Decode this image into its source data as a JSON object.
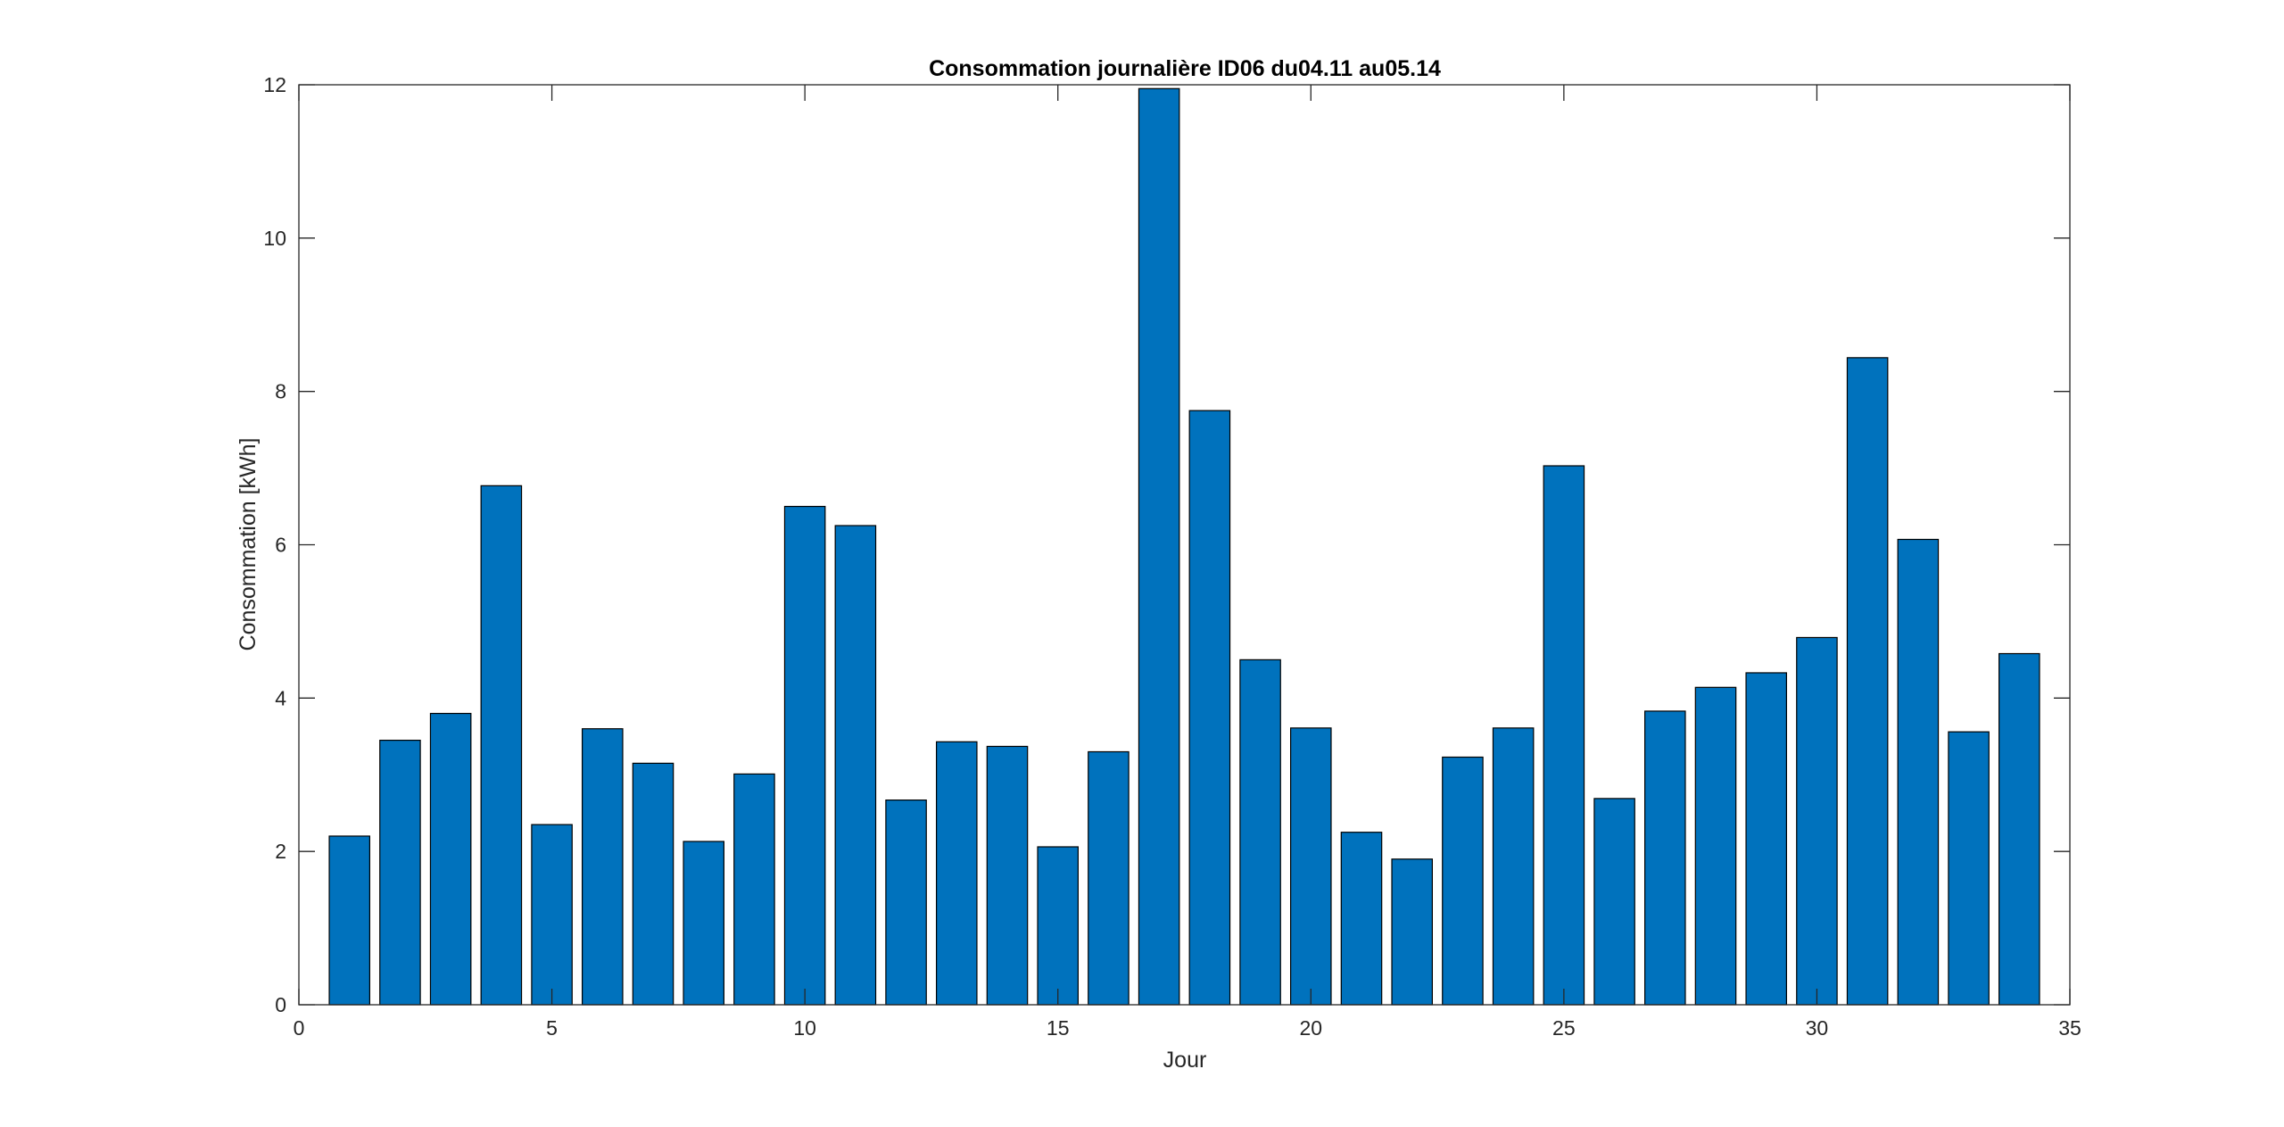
{
  "chart_data": {
    "type": "bar",
    "title": "Consommation journalière ID06 du04.11 au05.14",
    "xlabel": "Jour",
    "ylabel": "Consommation [kWh]",
    "xlim": [
      0,
      35
    ],
    "ylim": [
      0,
      12
    ],
    "xticks": [
      0,
      5,
      10,
      15,
      20,
      25,
      30,
      35
    ],
    "yticks": [
      0,
      2,
      4,
      6,
      8,
      10,
      12
    ],
    "grid": false,
    "legend": "none",
    "bar_color": "#0072BD",
    "edge_color": "#000000",
    "x": [
      1,
      2,
      3,
      4,
      5,
      6,
      7,
      8,
      9,
      10,
      11,
      12,
      13,
      14,
      15,
      16,
      17,
      18,
      19,
      20,
      21,
      22,
      23,
      24,
      25,
      26,
      27,
      28,
      29,
      30,
      31,
      32,
      33,
      34
    ],
    "values": [
      2.2,
      3.45,
      3.8,
      6.77,
      2.35,
      3.6,
      3.15,
      2.13,
      3.01,
      6.5,
      6.25,
      2.67,
      3.43,
      3.37,
      2.06,
      3.3,
      11.95,
      7.75,
      4.5,
      3.61,
      2.25,
      1.9,
      3.23,
      3.61,
      7.03,
      2.69,
      3.83,
      4.14,
      4.33,
      4.79,
      8.44,
      6.07,
      3.56,
      4.58
    ]
  }
}
